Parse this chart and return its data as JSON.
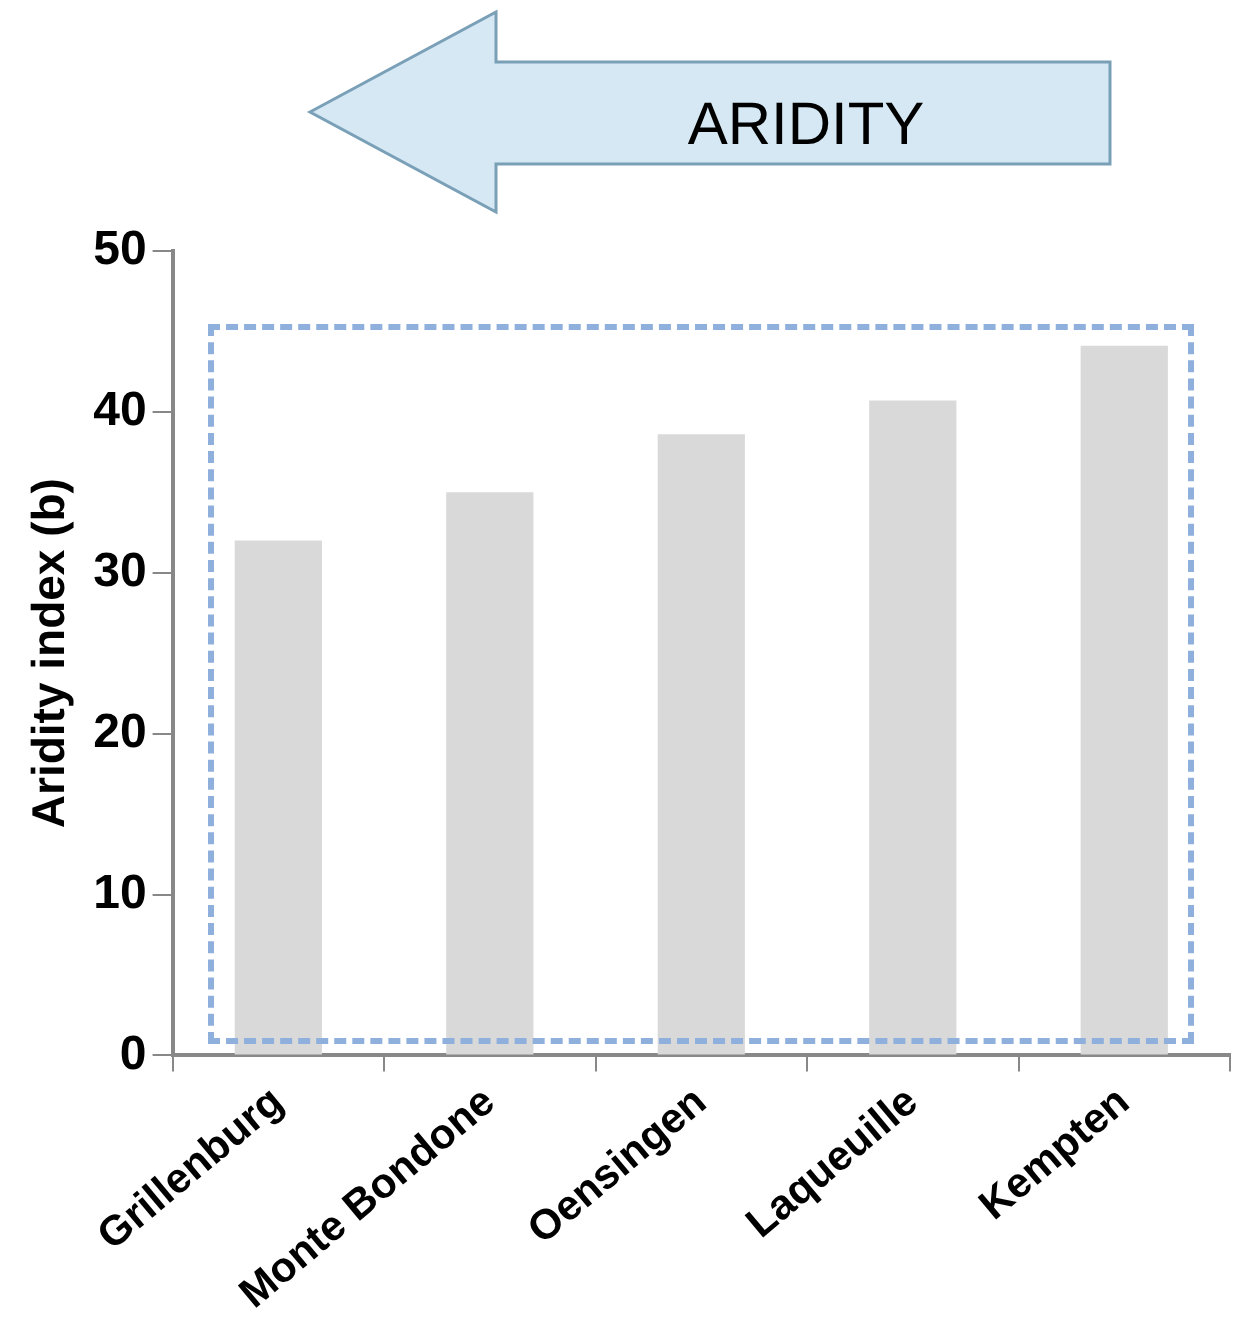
{
  "chart_data": {
    "type": "bar",
    "ylabel": "Aridity index (b)",
    "categories": [
      "Grillenburg",
      "Monte Bondone",
      "Oensingen",
      "Laqueuille",
      "Kempten"
    ],
    "values": [
      32,
      35,
      38.6,
      40.7,
      44.1
    ],
    "color": "#d9d9d9",
    "ylim": [
      0,
      50
    ],
    "yticks": [
      0,
      10,
      20,
      30,
      40,
      50
    ],
    "grid": false,
    "legend": false,
    "annotations": [
      "ARIDITY"
    ]
  }
}
